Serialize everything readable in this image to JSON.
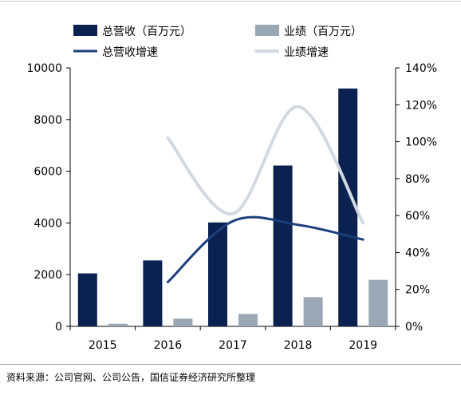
{
  "chart_data": {
    "type": "bar+line",
    "categories": [
      "2015",
      "2016",
      "2017",
      "2018",
      "2019"
    ],
    "bar_series": [
      {
        "name": "总营收（百万元）",
        "values": [
          2050,
          2550,
          4020,
          6220,
          9200
        ],
        "color": "#0b2150"
      },
      {
        "name": "业绩（百万元）",
        "values": [
          100,
          300,
          480,
          1130,
          1800
        ],
        "color": "#9aa7b4"
      }
    ],
    "line_series": [
      {
        "name": "总营收增速",
        "values": [
          null,
          24,
          57,
          55,
          47
        ],
        "color": "#1c3f7c"
      },
      {
        "name": "业绩增速",
        "values": [
          null,
          102,
          61,
          119,
          56
        ],
        "color": "#d3d9e1"
      }
    ],
    "y_left": {
      "min": 0,
      "max": 10000,
      "ticks": [
        "0",
        "2000",
        "4000",
        "6000",
        "8000",
        "10000"
      ]
    },
    "y_right": {
      "min": 0,
      "max": 140,
      "ticks": [
        "0%",
        "20%",
        "40%",
        "60%",
        "80%",
        "100%",
        "120%",
        "140%"
      ]
    },
    "legend": {
      "position": "top",
      "entries": [
        "总营收（百万元）",
        "业绩（百万元）",
        "总营收增速",
        "业绩增速"
      ]
    },
    "grid": false
  },
  "source": "资料来源：公司官网、公司公告，国信证券经济研究所整理"
}
